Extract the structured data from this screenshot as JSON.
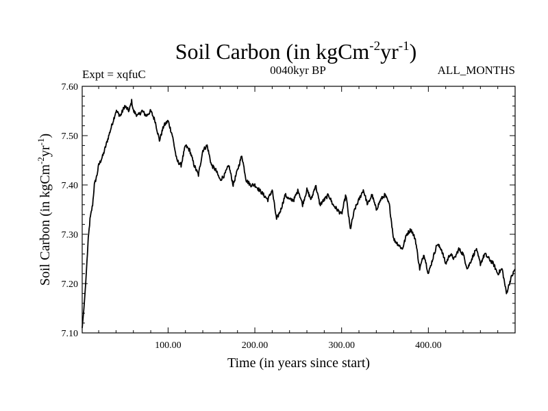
{
  "chart_data": {
    "type": "line",
    "title_main": "Soil Carbon (in kgCm",
    "title_sup1": "-2",
    "title_mid": "yr",
    "title_sup2": "-1",
    "title_end": ")",
    "expt_label": "Expt = xqfuC",
    "period_label": "0040kyr BP",
    "months_label": "ALL_MONTHS",
    "xlabel": "Time (in years since start)",
    "ylabel_main": "Soil Carbon (in kgCm",
    "ylabel_sup1": "-2",
    "ylabel_mid": "yr",
    "ylabel_sup2": "-1",
    "ylabel_end": ")",
    "xlim": [
      1,
      500
    ],
    "ylim": [
      7.1,
      7.6
    ],
    "x_ticks": [
      {
        "value": 100,
        "label": "100.00"
      },
      {
        "value": 200,
        "label": "200.00"
      },
      {
        "value": 300,
        "label": "300.00"
      },
      {
        "value": 400,
        "label": "400.00"
      }
    ],
    "y_ticks": [
      {
        "value": 7.1,
        "label": "7.10"
      },
      {
        "value": 7.2,
        "label": "7.20"
      },
      {
        "value": 7.3,
        "label": "7.30"
      },
      {
        "value": 7.4,
        "label": "7.40"
      },
      {
        "value": 7.5,
        "label": "7.50"
      },
      {
        "value": 7.6,
        "label": "7.60"
      }
    ],
    "series": [
      {
        "name": "Soil Carbon",
        "color": "#000000",
        "x": [
          1,
          3,
          5,
          8,
          10,
          13,
          15,
          18,
          20,
          25,
          30,
          35,
          40,
          45,
          50,
          55,
          58,
          60,
          65,
          70,
          75,
          80,
          85,
          90,
          95,
          100,
          105,
          110,
          115,
          120,
          125,
          130,
          135,
          140,
          145,
          150,
          155,
          160,
          165,
          170,
          175,
          180,
          185,
          190,
          195,
          200,
          205,
          210,
          215,
          220,
          225,
          230,
          235,
          240,
          245,
          250,
          255,
          260,
          265,
          270,
          275,
          280,
          285,
          290,
          295,
          300,
          305,
          310,
          315,
          320,
          325,
          330,
          335,
          340,
          345,
          350,
          355,
          360,
          365,
          370,
          375,
          380,
          385,
          390,
          395,
          400,
          405,
          410,
          415,
          420,
          425,
          430,
          435,
          440,
          445,
          450,
          455,
          460,
          465,
          470,
          475,
          480,
          485,
          490,
          495,
          500
        ],
        "values": [
          7.11,
          7.15,
          7.2,
          7.29,
          7.33,
          7.36,
          7.4,
          7.42,
          7.44,
          7.46,
          7.49,
          7.52,
          7.55,
          7.54,
          7.56,
          7.55,
          7.57,
          7.55,
          7.54,
          7.55,
          7.54,
          7.55,
          7.53,
          7.49,
          7.52,
          7.53,
          7.5,
          7.45,
          7.44,
          7.48,
          7.47,
          7.44,
          7.42,
          7.47,
          7.48,
          7.44,
          7.43,
          7.41,
          7.42,
          7.44,
          7.4,
          7.43,
          7.46,
          7.41,
          7.4,
          7.4,
          7.39,
          7.38,
          7.37,
          7.39,
          7.33,
          7.35,
          7.38,
          7.37,
          7.37,
          7.39,
          7.36,
          7.39,
          7.37,
          7.4,
          7.36,
          7.37,
          7.38,
          7.36,
          7.35,
          7.34,
          7.38,
          7.31,
          7.35,
          7.37,
          7.39,
          7.36,
          7.38,
          7.35,
          7.37,
          7.38,
          7.36,
          7.29,
          7.28,
          7.27,
          7.3,
          7.31,
          7.29,
          7.23,
          7.26,
          7.22,
          7.25,
          7.28,
          7.27,
          7.24,
          7.26,
          7.25,
          7.27,
          7.26,
          7.23,
          7.25,
          7.27,
          7.24,
          7.26,
          7.25,
          7.24,
          7.22,
          7.23,
          7.18,
          7.21,
          7.23
        ]
      }
    ]
  }
}
